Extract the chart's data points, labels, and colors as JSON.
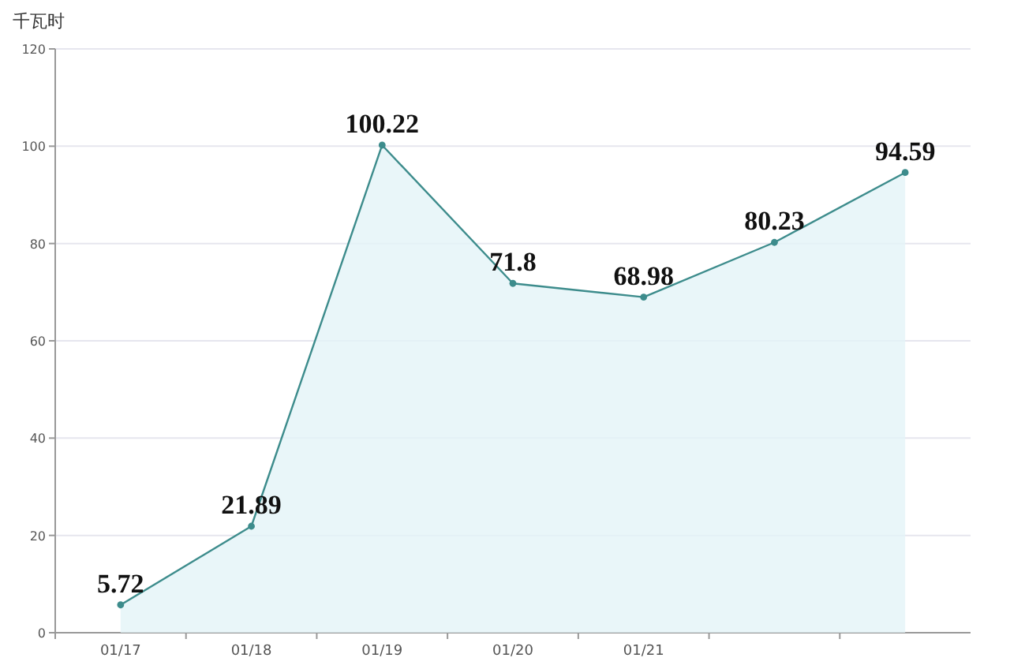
{
  "chart_data": {
    "type": "area",
    "ylabel": "千瓦时",
    "categories": [
      "01/17",
      "01/18",
      "01/19",
      "01/20",
      "01/21",
      null,
      null
    ],
    "series": [
      {
        "color": "#3d8c8c",
        "values": [
          5.72,
          21.89,
          100.22,
          71.8,
          68.98,
          80.23,
          94.59
        ]
      }
    ],
    "ylim": [
      0,
      120
    ],
    "yticks": [
      0,
      20,
      40,
      60,
      80,
      100,
      120
    ],
    "grid": "y",
    "marker": "circle",
    "data_labels": true
  }
}
